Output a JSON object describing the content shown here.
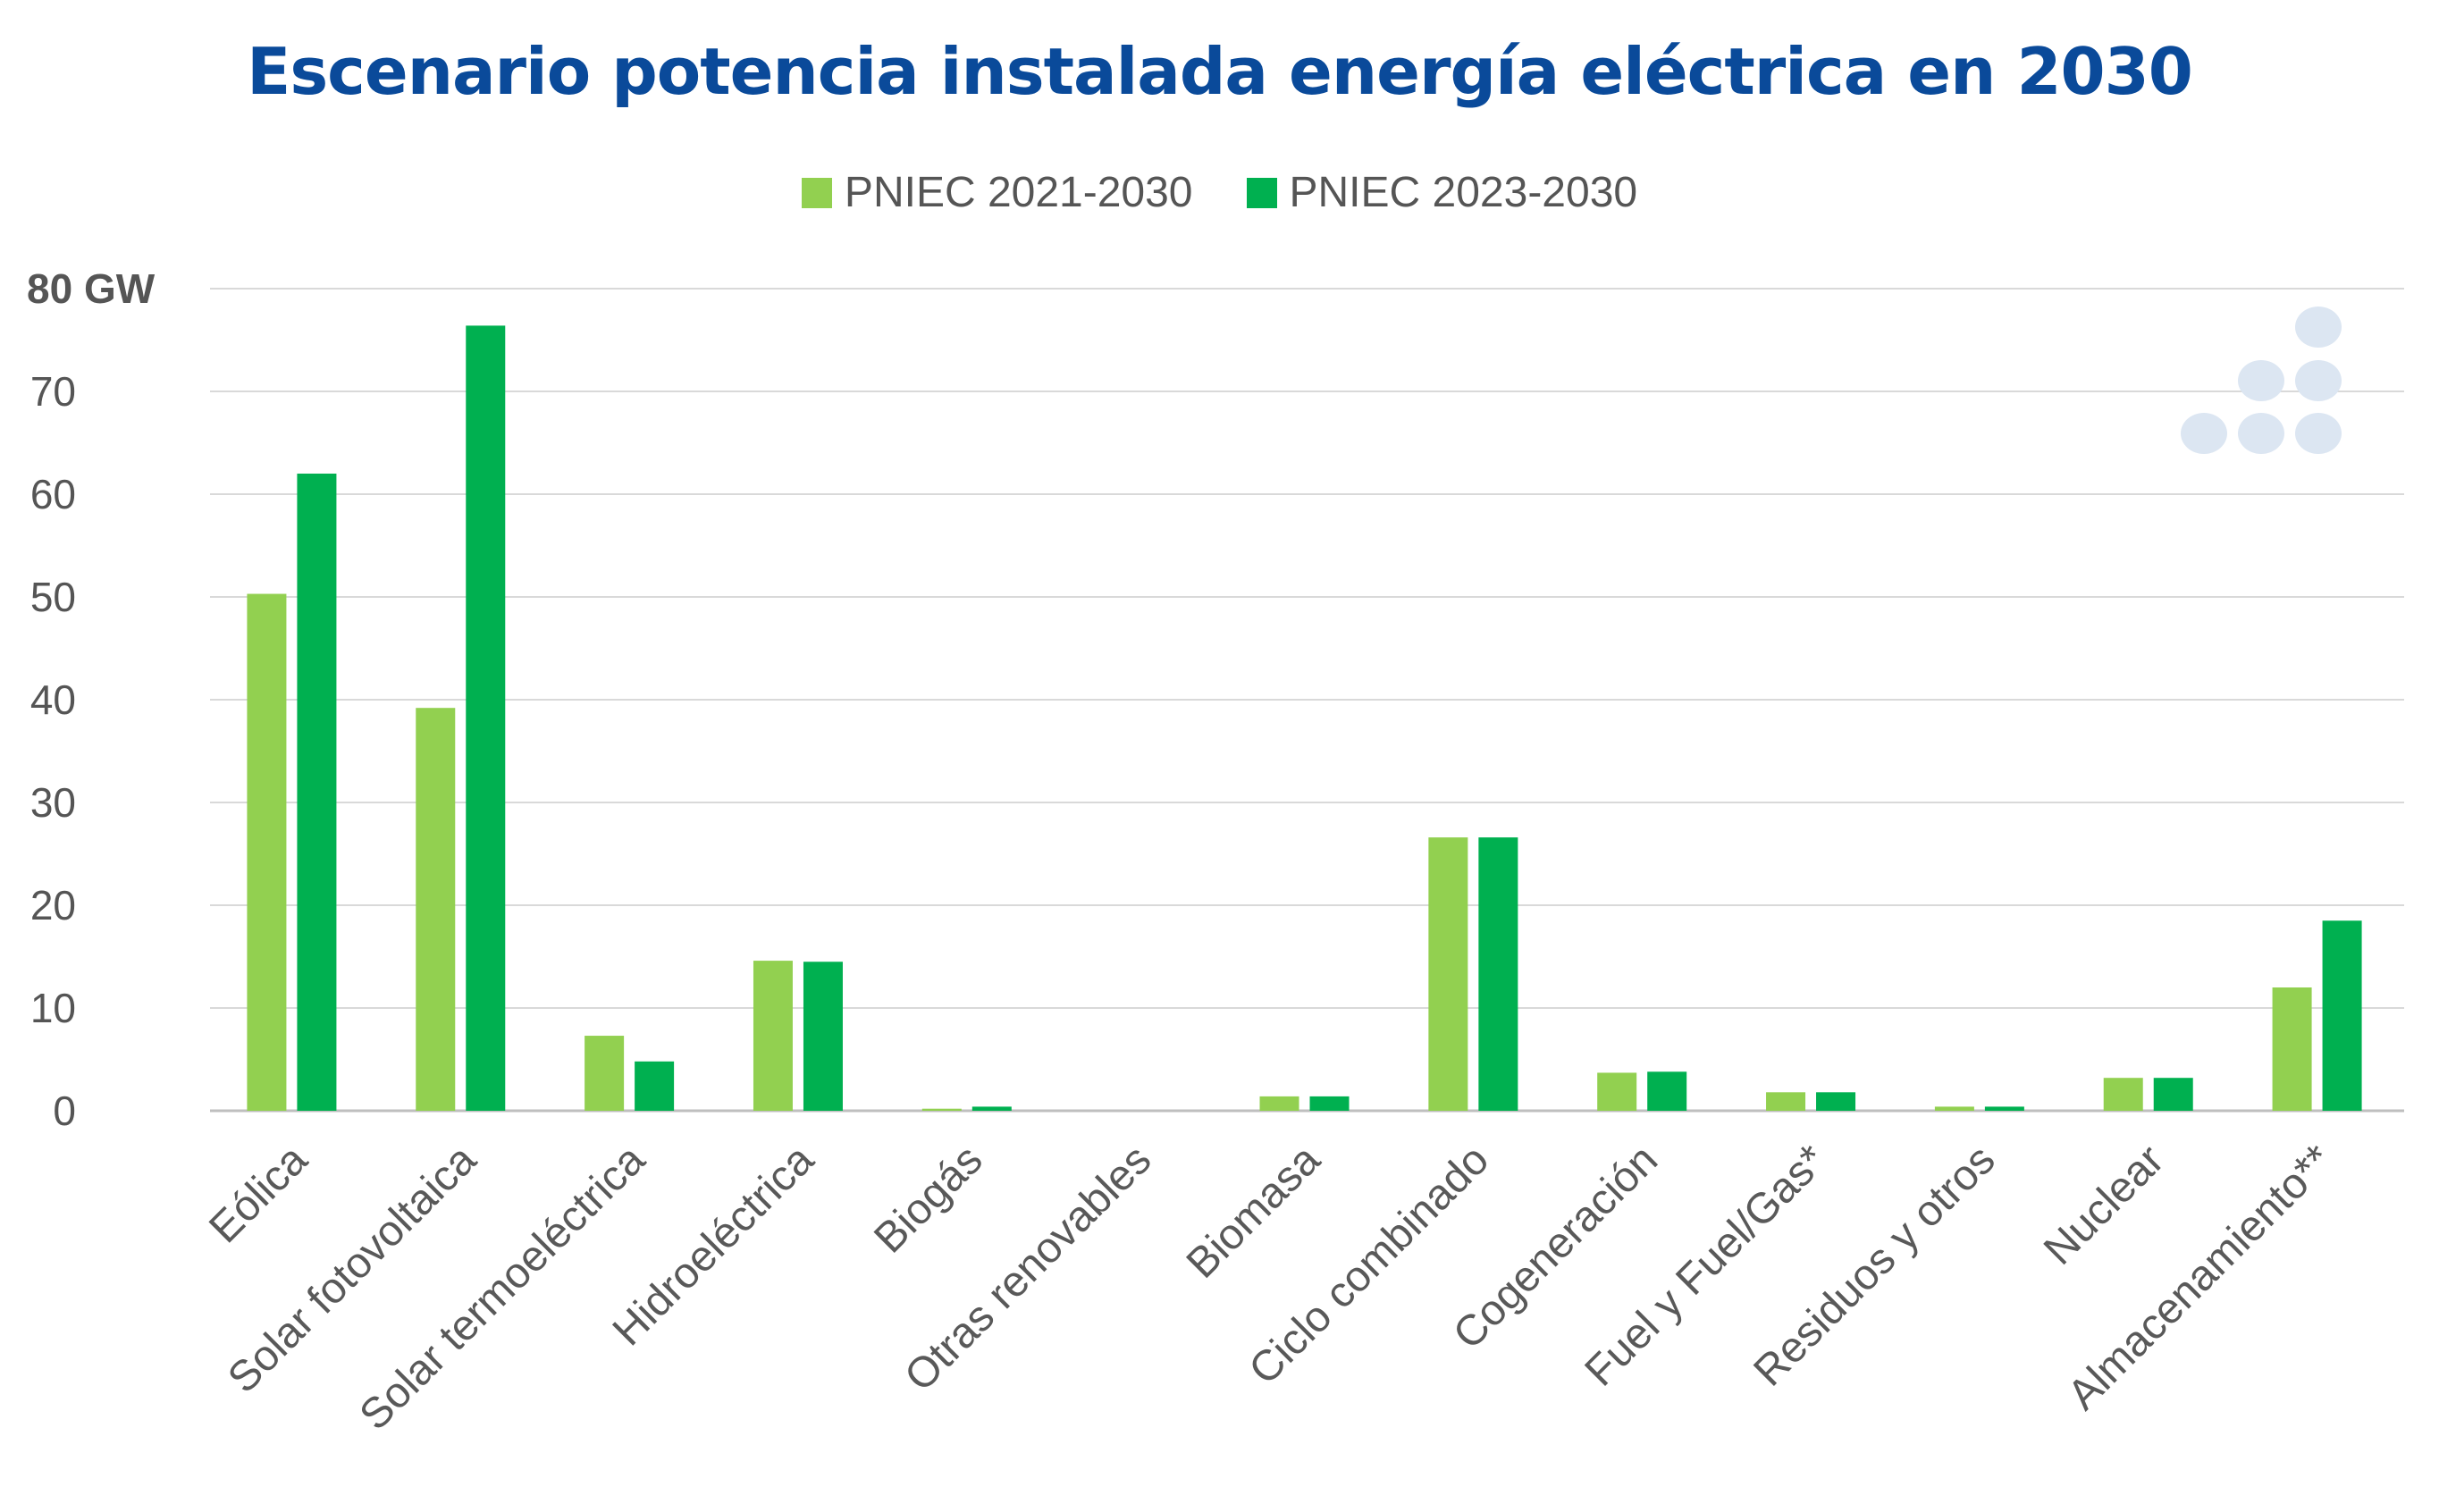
{
  "chart_data": {
    "type": "bar",
    "title": "Escenario potencia instalada energía eléctrica en 2030",
    "ylabel": "",
    "xlabel": "",
    "y_top_tick_label": "80 GW",
    "ylim": [
      0,
      80
    ],
    "yticks": [
      0,
      10,
      20,
      30,
      40,
      50,
      60,
      70,
      80
    ],
    "ytick_labels": [
      "0",
      "10",
      "20",
      "30",
      "40",
      "50",
      "60",
      "70",
      "80 GW"
    ],
    "grid": true,
    "legend_position": "top-center",
    "categories": [
      "Eólica",
      "Solar fotovoltaica",
      "Solar termoeléctrica",
      "Hidroeléctrica",
      "Biogás",
      "Otras renovables",
      "Biomasa",
      "Ciclo combinado",
      "Cogeneración",
      "Fuel y Fuel/Gas*",
      "Residuos y otros",
      "Nuclear",
      "Almacenamiento**"
    ],
    "series": [
      {
        "name": "PNIEC 2021-2030",
        "color": "#92d050",
        "values": [
          50.3,
          39.2,
          7.3,
          14.6,
          0.2,
          0.0,
          1.4,
          26.6,
          3.7,
          1.8,
          0.4,
          3.2,
          12.0
        ]
      },
      {
        "name": "PNIEC 2023-2030",
        "color": "#00b050",
        "values": [
          62.0,
          76.4,
          4.8,
          14.5,
          0.4,
          0.0,
          1.4,
          26.6,
          3.8,
          1.8,
          0.4,
          3.2,
          18.5
        ]
      }
    ]
  },
  "logo": {
    "name": "dots-logo-icon",
    "color": "#dce6f2"
  }
}
